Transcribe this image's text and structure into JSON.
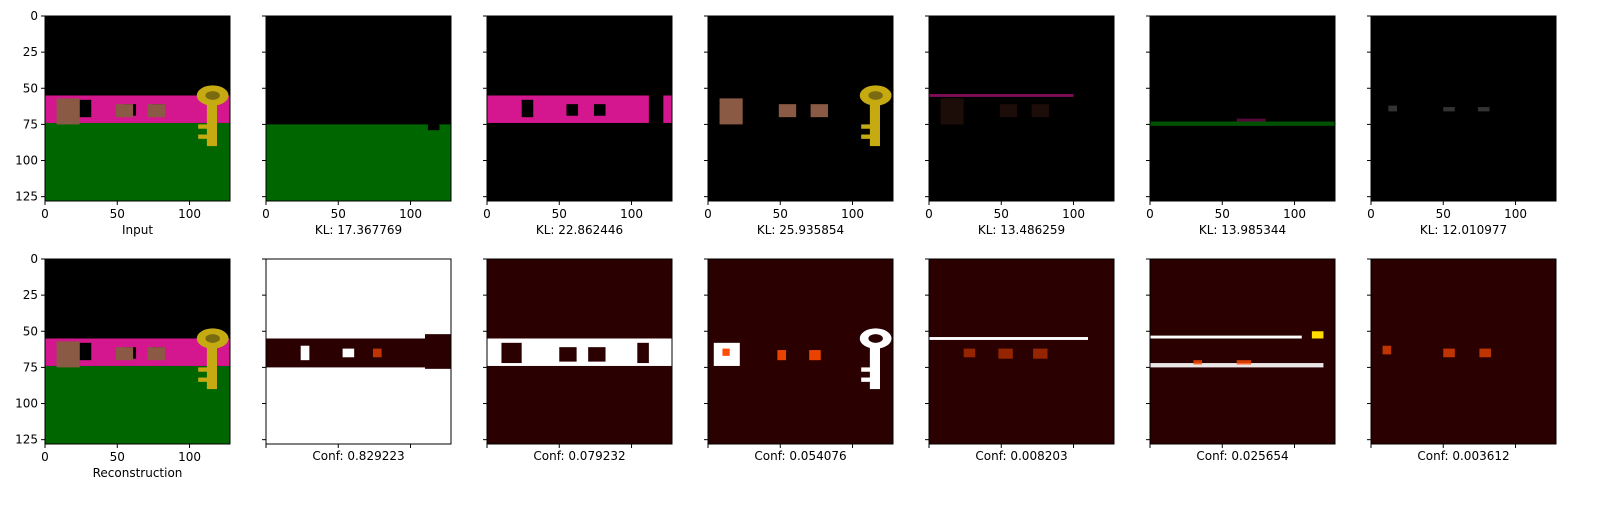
{
  "chart_data": {
    "type": "image-grid",
    "x_ticks": [
      "0",
      "50",
      "100"
    ],
    "y_ticks": [
      "0",
      "25",
      "50",
      "75",
      "100",
      "125"
    ],
    "image_size": [
      128,
      128
    ],
    "top_row": [
      {
        "label": "Input",
        "kind": "rgb-full"
      },
      {
        "label": "KL: 17.367769",
        "kind": "rgb-ground"
      },
      {
        "label": "KL: 22.862446",
        "kind": "rgb-wall"
      },
      {
        "label": "KL: 25.935854",
        "kind": "rgb-objects"
      },
      {
        "label": "KL: 13.486259",
        "kind": "rgb-faint-top"
      },
      {
        "label": "KL: 13.985344",
        "kind": "rgb-faint-green"
      },
      {
        "label": "KL: 12.010977",
        "kind": "rgb-faint-gray"
      }
    ],
    "bottom_row": [
      {
        "label": "Reconstruction",
        "kind": "rgb-full",
        "confidence": null
      },
      {
        "label": "Conf: 0.829223",
        "kind": "mask-ground",
        "confidence": 0.829223
      },
      {
        "label": "Conf: 0.079232",
        "kind": "mask-wall",
        "confidence": 0.079232
      },
      {
        "label": "Conf: 0.054076",
        "kind": "mask-objects",
        "confidence": 0.054076
      },
      {
        "label": "Conf: 0.008203",
        "kind": "mask-faint-top",
        "confidence": 0.008203
      },
      {
        "label": "Conf: 0.025654",
        "kind": "mask-faint-lines",
        "confidence": 0.025654
      },
      {
        "label": "Conf: 0.003612",
        "kind": "mask-faint-dots",
        "confidence": 0.003612
      }
    ],
    "colors": {
      "ground": "#006600",
      "wall": "#d4168f",
      "background": "#000000",
      "key": "#c6aa12",
      "box": "#8b5a44",
      "mask_hot": "#ffffff",
      "mask_mid": "#ff4a00",
      "mask_low": "#2a0000"
    }
  }
}
